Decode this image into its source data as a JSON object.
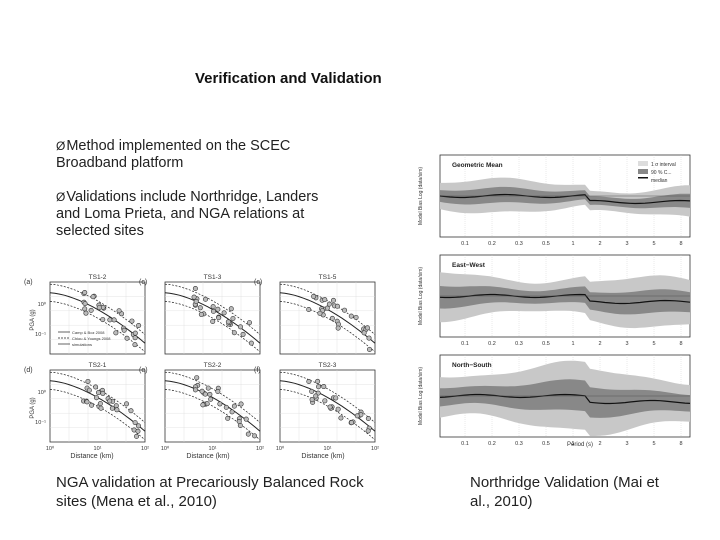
{
  "slide": {
    "title": "Verification and Validation",
    "bullets": [
      "Method implemented on the SCEC Broadband platform",
      "Validations include Northridge, Landers and Loma Prieta, and NGA relations at selected sites"
    ],
    "bullet_marker": "Ø",
    "caption_left": "NGA validation at Precariously Balanced Rock sites (Mena et al., 2010)",
    "caption_right": "Northridge Validation (Mai et al., 2010)"
  },
  "left_figure": {
    "panels": [
      {
        "letter": "(a)",
        "name": "TS1-2"
      },
      {
        "letter": "(c)",
        "name": "TS1-3"
      },
      {
        "letter": "(c)",
        "name": "TS1-5"
      },
      {
        "letter": "(d)",
        "name": "TS2-1"
      },
      {
        "letter": "(e)",
        "name": "TS2-2"
      },
      {
        "letter": "(f)",
        "name": "TS2-3"
      }
    ],
    "ylabel": "PGA (g)",
    "xlabel": "Distance (km)",
    "y_ticks": [
      "10⁰",
      "10⁻¹"
    ],
    "x_ticks": [
      "10⁰",
      "10¹",
      "10²"
    ],
    "legend": [
      "Camp & Boz 2008",
      "Chiou & Youngs 2008",
      "simulations"
    ]
  },
  "right_figure": {
    "panels": [
      {
        "title": "Geometric Mean",
        "ylabel": "Model Bias Log (data/sim)"
      },
      {
        "title": "East−West",
        "ylabel": "Model Bias Log (data/sim)"
      },
      {
        "title": "North−South",
        "ylabel": "Model Bias Log (data/sim)"
      }
    ],
    "x_ticks": [
      "0.1",
      "0.2",
      "0.3",
      "0.5",
      "1",
      "2",
      "3",
      "5",
      "8"
    ],
    "xlabel": "Period (s)",
    "legend": [
      "1 σ interval",
      "90 % C...",
      "median"
    ]
  }
}
